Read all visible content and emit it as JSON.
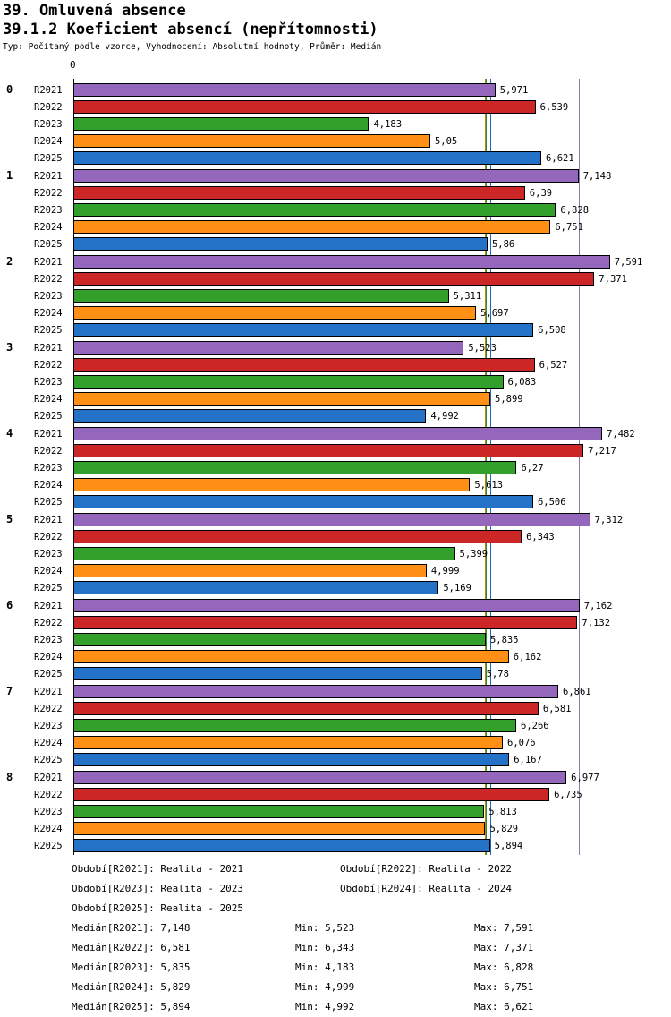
{
  "title": "39. Omluvená absence",
  "subtitle": "39.1.2 Koeficient absencí (nepřítomnosti)",
  "meta": "Typ: Počítaný podle vzorce, Vyhodnocení: Absolutní hodnoty, Průměr: Medián",
  "axis": {
    "origin_label": "0"
  },
  "chart_data": {
    "type": "bar",
    "orientation": "horizontal",
    "title": "39.1.2 Koeficient absencí (nepřítomnosti)",
    "categories": [
      "0",
      "1",
      "2",
      "3",
      "4",
      "5",
      "6",
      "7",
      "8"
    ],
    "xlim": [
      0,
      8.4
    ],
    "grid": false,
    "value_labels": true,
    "series": [
      {
        "name": "R2021",
        "color": "#9467BD",
        "line_color": "#8A7BAA",
        "median": 7.148,
        "values": [
          "5,971",
          "7,148",
          "7,591",
          "5,523",
          "7,482",
          "7,312",
          "7,162",
          "6,861",
          "6,977"
        ]
      },
      {
        "name": "R2022",
        "color": "#CC2626",
        "line_color": "#CC2626",
        "median": 6.581,
        "values": [
          "6,539",
          "6,39",
          "7,371",
          "6,527",
          "7,217",
          "6,343",
          "7,132",
          "6,581",
          "6,735"
        ]
      },
      {
        "name": "R2023",
        "color": "#33A02C",
        "line_color": "#2E8B2E",
        "median": 5.835,
        "values": [
          "4,183",
          "6,828",
          "5,311",
          "6,083",
          "6,27",
          "5,399",
          "5,835",
          "6,266",
          "5,813"
        ]
      },
      {
        "name": "R2024",
        "color": "#FF9015",
        "line_color": "#B8860B",
        "median": 5.829,
        "values": [
          "5,05",
          "6,751",
          "5,697",
          "5,899",
          "5,613",
          "4,999",
          "6,162",
          "6,076",
          "5,829"
        ]
      },
      {
        "name": "R2025",
        "color": "#2372C8",
        "line_color": "#2266BB",
        "median": 5.894,
        "values": [
          "6,621",
          "5,86",
          "6,508",
          "4,992",
          "6,506",
          "5,169",
          "5,78",
          "6,167",
          "5,894"
        ]
      }
    ]
  },
  "legend": {
    "periods": [
      "Období[R2021]: Realita - 2021",
      "Období[R2022]: Realita - 2022",
      "Období[R2023]: Realita - 2023",
      "Období[R2024]: Realita - 2024",
      "Období[R2025]: Realita - 2025"
    ],
    "stats": [
      {
        "median": "Medián[R2021]: 7,148",
        "min": "Min: 5,523",
        "max": "Max: 7,591"
      },
      {
        "median": "Medián[R2022]: 6,581",
        "min": "Min: 6,343",
        "max": "Max: 7,371"
      },
      {
        "median": "Medián[R2023]: 5,835",
        "min": "Min: 4,183",
        "max": "Max: 6,828"
      },
      {
        "median": "Medián[R2024]: 5,829",
        "min": "Min: 4,999",
        "max": "Max: 6,751"
      },
      {
        "median": "Medián[R2025]: 5,894",
        "min": "Min: 4,992",
        "max": "Max: 6,621"
      }
    ]
  }
}
